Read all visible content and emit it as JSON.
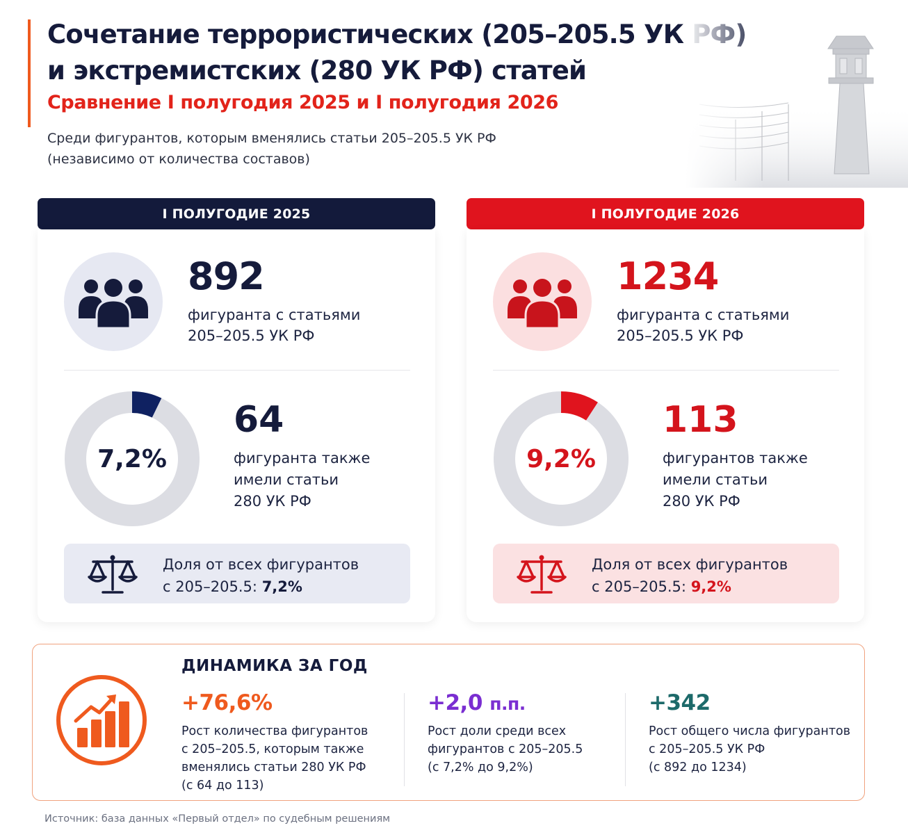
{
  "header": {
    "title_line1": "Сочетание террористических (205–205.5 УК РФ)",
    "title_line2": "и экстремистских (280 УК РФ) статей",
    "subtitle": "Сравнение I полугодия 2025 и I полугодия 2026",
    "intro_line1": "Среди фигурантов, которым вменялись статьи 205–205.5 УК РФ",
    "intro_line2": "(независимо от количества составов)"
  },
  "colors": {
    "navy": "#151b3b",
    "red": "#e0141e",
    "orange": "#ef5a1e",
    "purple": "#7a2ed1",
    "teal": "#1d6a6a",
    "donut_track": "#dcdde3"
  },
  "panels": [
    {
      "header": "I ПОЛУГОДИЕ 2025",
      "total": "892",
      "total_caption_line1": "фигуранта с статьями",
      "total_caption_line2": "205–205.5 УК РФ",
      "donut_label": "7,2%",
      "combined": "64",
      "combined_caption_line1": "фигуранта также",
      "combined_caption_line2": "имели статьи",
      "combined_caption_line3": "280 УК РФ",
      "share_line1": "Доля от всех фигурантов",
      "share_line2_prefix": "с 205–205.5:",
      "share_value": "7,2%",
      "icon": "people-group-icon"
    },
    {
      "header": "I ПОЛУГОДИЕ 2026",
      "total": "1234",
      "total_caption_line1": "фигуранта с статьями",
      "total_caption_line2": "205–205.5 УК РФ",
      "donut_label": "9,2%",
      "combined": "113",
      "combined_caption_line1": "фигурантов также",
      "combined_caption_line2": "имели статьи",
      "combined_caption_line3": "280 УК РФ",
      "share_line1": "Доля от всех фигурантов",
      "share_line2_prefix": "с 205–205.5:",
      "share_value": "9,2%",
      "icon": "people-group-icon"
    }
  ],
  "chart_data": [
    {
      "type": "pie",
      "title": "",
      "categories": [
        "280 УК РФ",
        ""
      ],
      "values": [
        7.2,
        92.8
      ],
      "total_figurants": 892,
      "combined_figurants": 64
    },
    {
      "type": "pie",
      "title": "",
      "categories": [
        "280 УК РФ",
        ""
      ],
      "values": [
        9.2,
        90.8
      ],
      "total_figurants": 1234,
      "combined_figurants": 113
    }
  ],
  "dynamics": {
    "title": "ДИНАМИКА ЗА ГОД",
    "items": [
      {
        "value": "+76,6%",
        "desc_line1": "Рост количества фигурантов",
        "desc_line2": "с 205–205.5, которым также",
        "desc_line3": "вменялись статьи 280 УК РФ",
        "desc_line4": "(с 64 до 113)"
      },
      {
        "value": "+2,0",
        "unit": "п.п.",
        "desc_line1": "Рост доли среди всех",
        "desc_line2": "фигурантов с 205–205.5",
        "desc_line3": "(с 7,2% до 9,2%)"
      },
      {
        "value": "+342",
        "desc_line1": "Рост общего числа фигурантов",
        "desc_line2": "с 205–205.5 УК РФ",
        "desc_line3": "(с 892 до 1234)"
      }
    ]
  },
  "source": "Источник: база данных «Первый отдел» по судебным решениям"
}
